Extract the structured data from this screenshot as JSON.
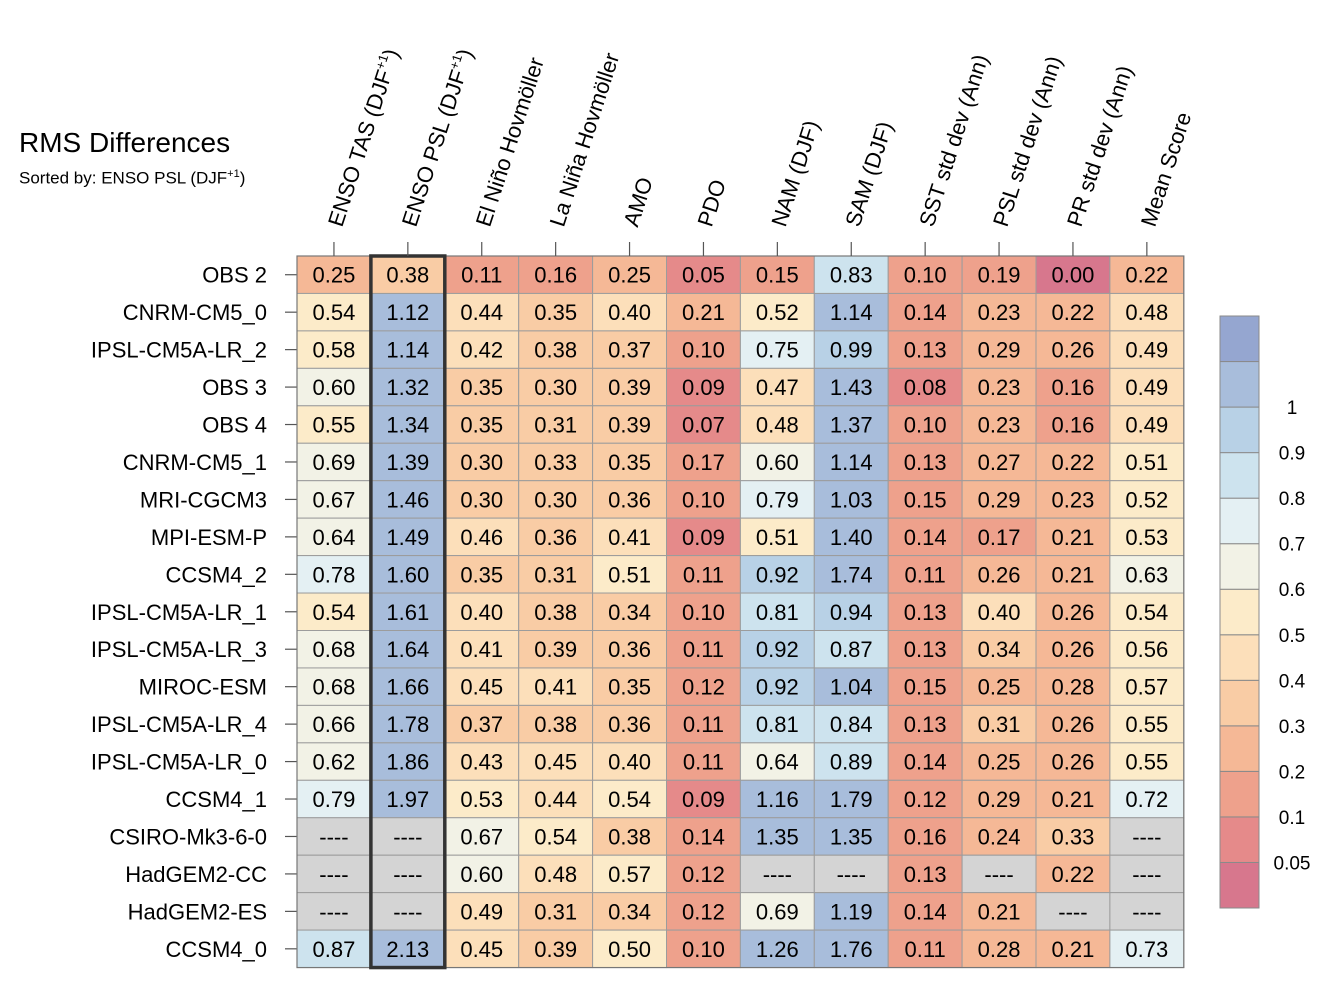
{
  "chart_data": {
    "type": "heatmap",
    "title": "RMS Differences",
    "subtitle_prefix": "Sorted by: ENSO PSL (DJF",
    "subtitle_sup": "+1",
    "subtitle_suffix": ")",
    "missing_label": "----",
    "highlighted_column": "ENSO PSL",
    "columns": [
      {
        "label": "ENSO TAS (DJF",
        "sup": "+1",
        "suffix": ")"
      },
      {
        "label": "ENSO PSL (DJF",
        "sup": "+1",
        "suffix": ")"
      },
      {
        "label": "El Niño Hovmöller"
      },
      {
        "label": "La Niña Hovmöller"
      },
      {
        "label": "AMO"
      },
      {
        "label": "PDO"
      },
      {
        "label": "NAM (DJF)"
      },
      {
        "label": "SAM (DJF)"
      },
      {
        "label": "SST std dev (Ann)"
      },
      {
        "label": "PSL std dev (Ann)"
      },
      {
        "label": "PR std dev (Ann)"
      },
      {
        "label": "Mean Score"
      }
    ],
    "rows": [
      "OBS 2",
      "CNRM-CM5_0",
      "IPSL-CM5A-LR_2",
      "OBS 3",
      "OBS 4",
      "CNRM-CM5_1",
      "MRI-CGCM3",
      "MPI-ESM-P",
      "CCSM4_2",
      "IPSL-CM5A-LR_1",
      "IPSL-CM5A-LR_3",
      "MIROC-ESM",
      "IPSL-CM5A-LR_4",
      "IPSL-CM5A-LR_0",
      "CCSM4_1",
      "CSIRO-Mk3-6-0",
      "HadGEM2-CC",
      "HadGEM2-ES",
      "CCSM4_0"
    ],
    "values": [
      [
        0.25,
        0.38,
        0.11,
        0.16,
        0.25,
        0.05,
        0.15,
        0.83,
        0.1,
        0.19,
        0.0,
        0.22
      ],
      [
        0.54,
        1.12,
        0.44,
        0.35,
        0.4,
        0.21,
        0.52,
        1.14,
        0.14,
        0.23,
        0.22,
        0.48
      ],
      [
        0.58,
        1.14,
        0.42,
        0.38,
        0.37,
        0.1,
        0.75,
        0.99,
        0.13,
        0.29,
        0.26,
        0.49
      ],
      [
        0.6,
        1.32,
        0.35,
        0.3,
        0.39,
        0.09,
        0.47,
        1.43,
        0.08,
        0.23,
        0.16,
        0.49
      ],
      [
        0.55,
        1.34,
        0.35,
        0.31,
        0.39,
        0.07,
        0.48,
        1.37,
        0.1,
        0.23,
        0.16,
        0.49
      ],
      [
        0.69,
        1.39,
        0.3,
        0.33,
        0.35,
        0.17,
        0.6,
        1.14,
        0.13,
        0.27,
        0.22,
        0.51
      ],
      [
        0.67,
        1.46,
        0.3,
        0.3,
        0.36,
        0.1,
        0.79,
        1.03,
        0.15,
        0.29,
        0.23,
        0.52
      ],
      [
        0.64,
        1.49,
        0.46,
        0.36,
        0.41,
        0.09,
        0.51,
        1.4,
        0.14,
        0.17,
        0.21,
        0.53
      ],
      [
        0.78,
        1.6,
        0.35,
        0.31,
        0.51,
        0.11,
        0.92,
        1.74,
        0.11,
        0.26,
        0.21,
        0.63
      ],
      [
        0.54,
        1.61,
        0.4,
        0.38,
        0.34,
        0.1,
        0.81,
        0.94,
        0.13,
        0.4,
        0.26,
        0.54
      ],
      [
        0.68,
        1.64,
        0.41,
        0.39,
        0.36,
        0.11,
        0.92,
        0.87,
        0.13,
        0.34,
        0.26,
        0.56
      ],
      [
        0.68,
        1.66,
        0.45,
        0.41,
        0.35,
        0.12,
        0.92,
        1.04,
        0.15,
        0.25,
        0.28,
        0.57
      ],
      [
        0.66,
        1.78,
        0.37,
        0.38,
        0.36,
        0.11,
        0.81,
        0.84,
        0.13,
        0.31,
        0.26,
        0.55
      ],
      [
        0.62,
        1.86,
        0.43,
        0.45,
        0.4,
        0.11,
        0.64,
        0.89,
        0.14,
        0.25,
        0.26,
        0.55
      ],
      [
        0.79,
        1.97,
        0.53,
        0.44,
        0.54,
        0.09,
        1.16,
        1.79,
        0.12,
        0.29,
        0.21,
        0.72
      ],
      [
        null,
        null,
        0.67,
        0.54,
        0.38,
        0.14,
        1.35,
        1.35,
        0.16,
        0.24,
        0.33,
        null
      ],
      [
        null,
        null,
        0.6,
        0.48,
        0.57,
        0.12,
        null,
        null,
        0.13,
        null,
        0.22,
        null
      ],
      [
        null,
        null,
        0.49,
        0.31,
        0.34,
        0.12,
        0.69,
        1.19,
        0.14,
        0.21,
        null,
        null
      ],
      [
        0.87,
        2.13,
        0.45,
        0.39,
        0.5,
        0.1,
        1.26,
        1.76,
        0.11,
        0.28,
        0.21,
        0.73
      ]
    ],
    "colorbar": {
      "levels": [
        0.05,
        0.1,
        0.2,
        0.3,
        0.4,
        0.5,
        0.6,
        0.7,
        0.8,
        0.9,
        1
      ],
      "tick_labels": [
        "0.05",
        "0.1",
        "0.2",
        "0.3",
        "0.4",
        "0.5",
        "0.6",
        "0.7",
        "0.8",
        "0.9",
        "1"
      ],
      "colors": [
        "#d7778d",
        "#e58a8a",
        "#eea18c",
        "#f5b896",
        "#f9cca5",
        "#fcdfba",
        "#fcebc9",
        "#f2f2e6",
        "#e4f0f3",
        "#cde3ee",
        "#b8d1e6",
        "#a8bddb",
        "#95a6d0"
      ],
      "missing_color": "#d4d4d4"
    }
  }
}
